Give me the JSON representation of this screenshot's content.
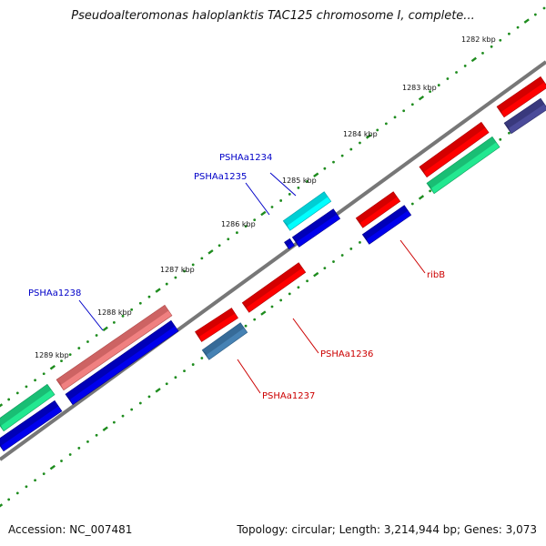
{
  "title": "Pseudoalteromonas haloplanktis TAC125 chromosome I, complete...",
  "footer": {
    "accession": "Accession: NC_007481",
    "topology": "Topology: circular; Length: 3,214,944 bp; Genes: 3,073"
  },
  "colors": {
    "backbone": "#777777",
    "tick_dots": "#1e8c1e",
    "label_blue": "#0000c8",
    "label_red": "#cc0000"
  },
  "kbp_markers": [
    "1282 kbp",
    "1283 kbp",
    "1284 kbp",
    "1285 kbp",
    "1286 kbp",
    "1287 kbp",
    "1288 kbp",
    "1289 kbp"
  ],
  "gene_labels": [
    {
      "text": "PSHAa1234",
      "color": "#0000c8"
    },
    {
      "text": "PSHAa1235",
      "color": "#0000c8"
    },
    {
      "text": "PSHAa1238",
      "color": "#0000c8"
    },
    {
      "text": "ribB",
      "color": "#cc0000"
    },
    {
      "text": "PSHAa1236",
      "color": "#cc0000"
    },
    {
      "text": "PSHAa1237",
      "color": "#cc0000"
    }
  ],
  "genes": [
    {
      "name": "red-top-right",
      "color": "#ff0000",
      "dark": "#b00000"
    },
    {
      "name": "slate-top-right",
      "color": "#4b4b9a",
      "dark": "#2c2c66"
    },
    {
      "name": "red-long",
      "color": "#ff0000",
      "dark": "#b00000"
    },
    {
      "name": "green-long",
      "color": "#22e890",
      "dark": "#129a5c"
    },
    {
      "name": "ribB-red",
      "color": "#ff0000",
      "dark": "#b00000"
    },
    {
      "name": "ribB-blue",
      "color": "#0000ee",
      "dark": "#00008a"
    },
    {
      "name": "PSHAa1234",
      "color": "#00ffff",
      "dark": "#00a6b0"
    },
    {
      "name": "PSHAa1235",
      "color": "#0000ee",
      "dark": "#00008a"
    },
    {
      "name": "PSHAa1235-tip",
      "color": "#0000ee",
      "dark": "#00008a"
    },
    {
      "name": "PSHAa1236",
      "color": "#ff0000",
      "dark": "#b00000"
    },
    {
      "name": "small-red",
      "color": "#ff0000",
      "dark": "#b00000"
    },
    {
      "name": "PSHAa1237",
      "color": "#4682b4",
      "dark": "#2a5a82"
    },
    {
      "name": "PSHAa1238",
      "color": "#f08080",
      "dark": "#b04a4a"
    },
    {
      "name": "blue-long",
      "color": "#0000ee",
      "dark": "#00008a"
    },
    {
      "name": "green-left",
      "color": "#22e890",
      "dark": "#129a5c"
    },
    {
      "name": "blue-left",
      "color": "#0000ee",
      "dark": "#00008a"
    }
  ]
}
